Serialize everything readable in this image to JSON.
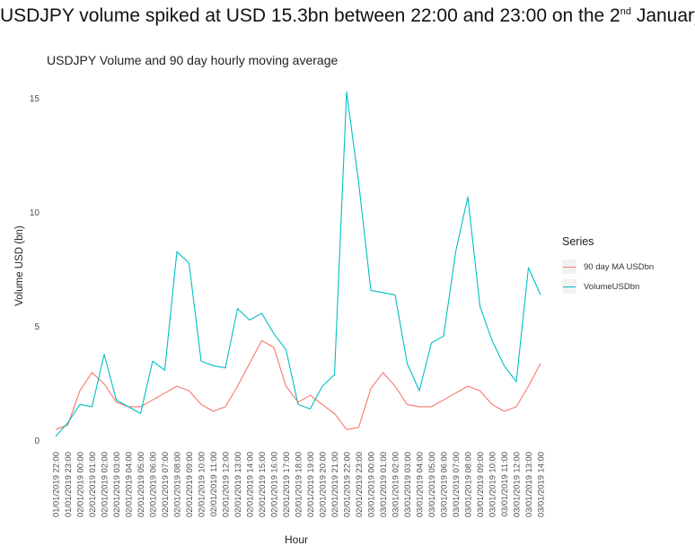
{
  "headline": {
    "pre": "USDJPY volume spiked at USD 15.3bn between 22:00 and 23:00 on the 2",
    "sup": "nd",
    "post": " January"
  },
  "chart_data": {
    "type": "line",
    "title": "USDJPY Volume and 90 day hourly moving average",
    "xlabel": "Hour",
    "ylabel": "Volume USD (bn)",
    "ylim": [
      0,
      15.5
    ],
    "yticks": [
      0,
      5,
      10,
      15
    ],
    "grid": false,
    "legend_title": "Series",
    "legend_position": "right",
    "x": [
      "01/01/2019 22:00",
      "01/01/2019 23:00",
      "02/01/2019 00:00",
      "02/01/2019 01:00",
      "02/01/2019 02:00",
      "02/01/2019 03:00",
      "02/01/2019 04:00",
      "02/01/2019 05:00",
      "02/01/2019 06:00",
      "02/01/2019 07:00",
      "02/01/2019 08:00",
      "02/01/2019 09:00",
      "02/01/2019 10:00",
      "02/01/2019 11:00",
      "02/01/2019 12:00",
      "02/01/2019 13:00",
      "02/01/2019 14:00",
      "02/01/2019 15:00",
      "02/01/2019 16:00",
      "02/01/2019 17:00",
      "02/01/2019 18:00",
      "02/01/2019 19:00",
      "02/01/2019 20:00",
      "02/01/2019 21:00",
      "02/01/2019 22:00",
      "02/01/2019 23:00",
      "03/01/2019 00:00",
      "03/01/2019 01:00",
      "03/01/2019 02:00",
      "03/01/2019 03:00",
      "03/01/2019 04:00",
      "03/01/2019 05:00",
      "03/01/2019 06:00",
      "03/01/2019 07:00",
      "03/01/2019 08:00",
      "03/01/2019 09:00",
      "03/01/2019 10:00",
      "03/01/2019 11:00",
      "03/01/2019 12:00",
      "03/01/2019 13:00",
      "03/01/2019 14:00"
    ],
    "series": [
      {
        "name": "90 day MA USDbn",
        "color": "#f8766d",
        "values": [
          0.5,
          0.7,
          2.2,
          3.0,
          2.5,
          1.7,
          1.5,
          1.5,
          1.8,
          2.1,
          2.4,
          2.2,
          1.6,
          1.3,
          1.5,
          2.4,
          3.4,
          4.4,
          4.1,
          2.4,
          1.7,
          2.0,
          1.6,
          1.2,
          0.5,
          0.6,
          2.3,
          3.0,
          2.4,
          1.6,
          1.5,
          1.5,
          1.8,
          2.1,
          2.4,
          2.2,
          1.6,
          1.3,
          1.5,
          2.4,
          3.4
        ]
      },
      {
        "name": "VolumeUSDbn",
        "color": "#00bfc4",
        "values": [
          0.2,
          0.8,
          1.6,
          1.5,
          3.8,
          1.8,
          1.5,
          1.2,
          3.5,
          3.1,
          8.3,
          7.8,
          3.5,
          3.3,
          3.2,
          5.8,
          5.3,
          5.6,
          4.7,
          4.0,
          1.6,
          1.4,
          2.4,
          2.9,
          15.3,
          11.3,
          6.6,
          6.5,
          6.4,
          3.4,
          2.2,
          4.3,
          4.6,
          8.3,
          10.7,
          5.9,
          4.4,
          3.3,
          2.6,
          7.6,
          6.4
        ]
      }
    ]
  }
}
